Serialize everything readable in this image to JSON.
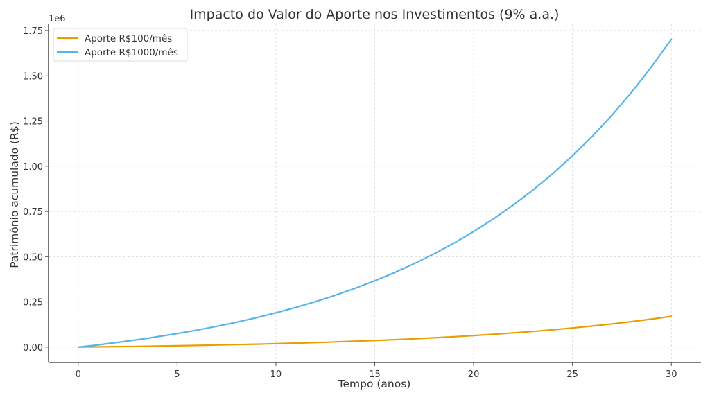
{
  "chart_data": {
    "type": "line",
    "title": "Impacto do Valor do Aporte nos Investimentos (9% a.a.)",
    "xlabel": "Tempo (anos)",
    "ylabel": "Patrimônio acumulado (R$)",
    "y_offset_text": "1e6",
    "xlim": [
      -1.5,
      31.5
    ],
    "ylim": [
      -85000,
      1785000
    ],
    "x_ticks": [
      0,
      5,
      10,
      15,
      20,
      25,
      30
    ],
    "x_tick_labels": [
      "0",
      "5",
      "10",
      "15",
      "20",
      "25",
      "30"
    ],
    "y_ticks": [
      0,
      250000,
      500000,
      750000,
      1000000,
      1250000,
      1500000,
      1750000
    ],
    "y_tick_labels": [
      "0.00",
      "0.25",
      "0.50",
      "0.75",
      "1.00",
      "1.25",
      "1.50",
      "1.75"
    ],
    "grid": true,
    "legend_position": "upper left",
    "x": [
      0,
      1,
      2,
      3,
      4,
      5,
      6,
      7,
      8,
      9,
      10,
      11,
      12,
      13,
      14,
      15,
      16,
      17,
      18,
      19,
      20,
      21,
      22,
      23,
      24,
      25,
      26,
      27,
      28,
      29,
      30
    ],
    "series": [
      {
        "name": "Aporte R$100/mês",
        "color": "#E69F00",
        "values": [
          0,
          1249,
          2610,
          4093,
          5711,
          7473,
          9394,
          11489,
          13771,
          16260,
          18972,
          21928,
          25150,
          28662,
          32491,
          36664,
          41212,
          46170,
          51574,
          57465,
          63885,
          70884,
          78512,
          86827,
          95890,
          105769,
          116537,
          128274,
          141067,
          155012,
          170212
        ]
      },
      {
        "name": "Aporte R$1000/mês",
        "color": "#56B4E9",
        "values": [
          0,
          12487,
          26098,
          40934,
          57105,
          74731,
          93944,
          114886,
          137713,
          162595,
          189716,
          219278,
          251500,
          286624,
          324907,
          366636,
          412122,
          461702,
          515742,
          574647,
          638853,
          708838,
          785121,
          868268,
          958900,
          1057688,
          1165370,
          1282740,
          1410673,
          1550120,
          1702117
        ]
      }
    ]
  }
}
